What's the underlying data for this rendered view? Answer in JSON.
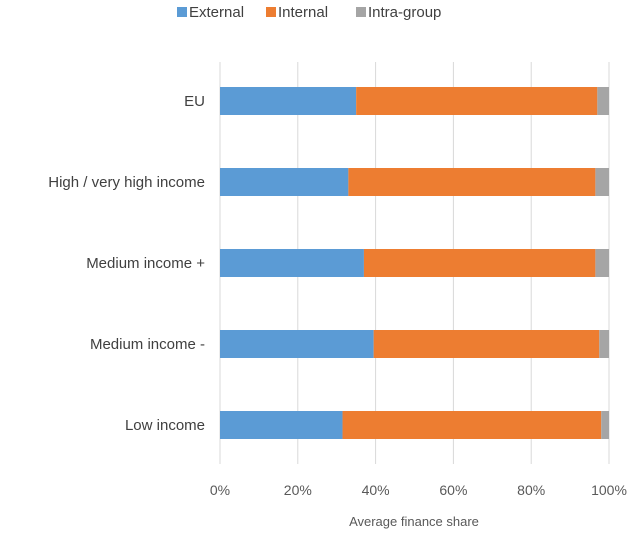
{
  "chart_data": {
    "type": "bar",
    "orientation": "horizontal",
    "stacked": true,
    "categories": [
      "EU",
      "High / very high income",
      "Medium income +",
      "Medium income -",
      "Low income"
    ],
    "series": [
      {
        "name": "External",
        "color": "#5B9BD5",
        "values": [
          35,
          33,
          37,
          39.5,
          31.5
        ]
      },
      {
        "name": "Internal",
        "color": "#ED7D31",
        "values": [
          62,
          63.5,
          59.5,
          58,
          66.5
        ]
      },
      {
        "name": "Intra-group",
        "color": "#A5A5A5",
        "values": [
          3,
          3.5,
          3.5,
          2.5,
          2
        ]
      }
    ],
    "xlim": [
      0,
      100
    ],
    "x_ticks": [
      "0%",
      "20%",
      "40%",
      "60%",
      "80%",
      "100%"
    ],
    "xlabel": "Average finance share",
    "ylabel": "",
    "grid": "vertical",
    "legend_position": "top"
  }
}
